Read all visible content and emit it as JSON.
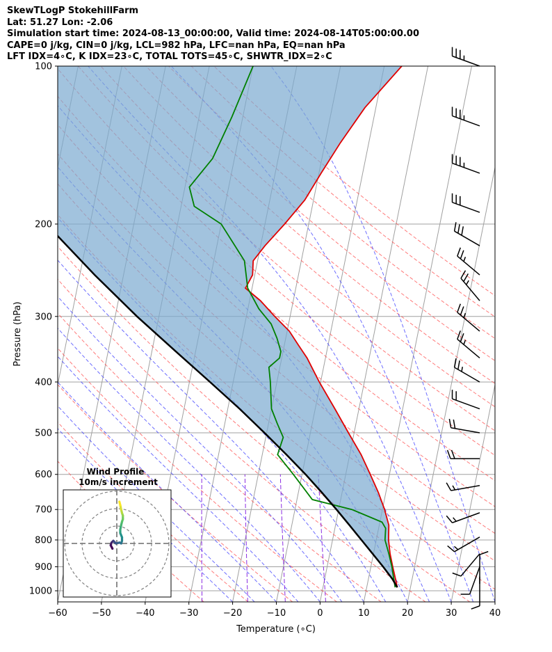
{
  "header": {
    "line1": "SkewTLogP StokehillFarm",
    "line2": "Lat: 51.27   Lon: -2.06",
    "line3": "Simulation start time: 2024-08-13_00:00:00, Valid time: 2024-08-14T05:00:00.00",
    "line4": "CAPE=0 j/kg, CIN=0 j/kg, LCL=982 hPa, LFC=nan hPa, EQ=nan hPa",
    "line5": "LFT IDX=4∘C, K IDX=23∘C, TOTAL TOTS=45∘C, SHWTR_IDX=2∘C"
  },
  "colors": {
    "temperature": "#e00000",
    "dewpoint": "#008000",
    "parcel": "#000000",
    "shade": "#7aaad0",
    "dry_adiabat": "#ff4d4d",
    "moist_adiabat": "#3b3bff",
    "mixing_ratio": "#8a2be2",
    "isotherm": "#a0a0a0"
  },
  "chart_data": {
    "type": "line",
    "title": "SkewTLogP StokehillFarm",
    "xlabel": "Temperature (∘C)",
    "ylabel": "Pressure (hPa)",
    "xlim": [
      -60,
      40
    ],
    "ylim": [
      1050,
      100
    ],
    "y_scale": "log",
    "x_ticks": [
      "−60",
      "−50",
      "−40",
      "−30",
      "−20",
      "−10",
      "0",
      "10",
      "20",
      "30",
      "40"
    ],
    "y_ticks": [
      "100",
      "200",
      "300",
      "400",
      "500",
      "600",
      "700",
      "800",
      "900",
      "1000"
    ],
    "grid": true,
    "series": [
      {
        "key": "temperature",
        "pressure": [
          985,
          950,
          900,
          850,
          800,
          750,
          700,
          650,
          600,
          550,
          500,
          450,
          400,
          380,
          360,
          340,
          320,
          300,
          280,
          265,
          250,
          235,
          220,
          200,
          180,
          160,
          140,
          120,
          100
        ],
        "values": [
          17.0,
          16.2,
          15.0,
          13.8,
          12.8,
          12.2,
          10.5,
          8.3,
          5.6,
          2.6,
          -1.3,
          -5.5,
          -10.3,
          -12.2,
          -14.2,
          -16.8,
          -19.5,
          -23.5,
          -27.5,
          -31.5,
          -30.5,
          -31.0,
          -29.0,
          -25.5,
          -22.0,
          -19.5,
          -16.5,
          -12.5,
          -6.0
        ]
      },
      {
        "key": "dewpoint",
        "pressure": [
          985,
          950,
          900,
          850,
          800,
          760,
          740,
          700,
          670,
          600,
          550,
          510,
          480,
          450,
          400,
          375,
          360,
          350,
          330,
          310,
          290,
          265,
          235,
          200,
          185,
          170,
          150,
          125,
          100
        ],
        "values": [
          16.5,
          15.8,
          14.8,
          13.5,
          12.0,
          11.6,
          10.5,
          3.0,
          -6.5,
          -12.0,
          -16.5,
          -16.0,
          -18.0,
          -20.0,
          -21.5,
          -22.5,
          -20.5,
          -20.5,
          -22.0,
          -24.0,
          -27.5,
          -31.0,
          -33.0,
          -40.0,
          -47.0,
          -49.0,
          -45.0,
          -42.5,
          -40.0
        ]
      },
      {
        "key": "parcel",
        "pressure": [
          985,
          950,
          900,
          850,
          800,
          750,
          700,
          650,
          600,
          550,
          500,
          450,
          400,
          350,
          300,
          250,
          200,
          150,
          100
        ],
        "values": [
          17.0,
          15.5,
          12.8,
          9.8,
          6.6,
          3.2,
          -0.5,
          -4.6,
          -9.2,
          -14.5,
          -20.5,
          -27.3,
          -35.3,
          -44.5,
          -55.0,
          -66.6,
          -80.0,
          -97.0,
          -120.0
        ]
      }
    ],
    "wind_barbs": {
      "pressure": [
        100,
        130,
        160,
        190,
        220,
        250,
        280,
        320,
        360,
        400,
        450,
        500,
        560,
        630,
        710,
        790,
        850,
        900,
        940,
        970
      ],
      "speed_kt": [
        35,
        35,
        35,
        30,
        30,
        25,
        25,
        25,
        25,
        25,
        20,
        20,
        20,
        15,
        15,
        15,
        10,
        10,
        10,
        10
      ],
      "direction_deg": [
        290,
        290,
        290,
        290,
        300,
        310,
        320,
        310,
        310,
        300,
        290,
        280,
        270,
        260,
        250,
        240,
        220,
        200,
        180,
        0
      ]
    },
    "hodograph": {
      "title": "Wind Profile",
      "subtitle": "10m/s increment",
      "u": [
        -2.5,
        -3.5,
        -3.0,
        -2.0,
        -1.5,
        -0.5,
        1.5,
        2.5,
        3.0,
        3.0,
        2.0,
        2.0,
        2.5,
        3.0,
        3.5,
        3.5,
        3.0,
        2.5,
        2.0,
        1.5
      ],
      "v": [
        -3.0,
        -1.0,
        0.5,
        1.5,
        1.0,
        0.0,
        0.5,
        0.0,
        1.5,
        3.5,
        6.0,
        8.0,
        10.5,
        12.5,
        14.0,
        16.0,
        17.5,
        19.5,
        22.0,
        24.0
      ]
    }
  }
}
